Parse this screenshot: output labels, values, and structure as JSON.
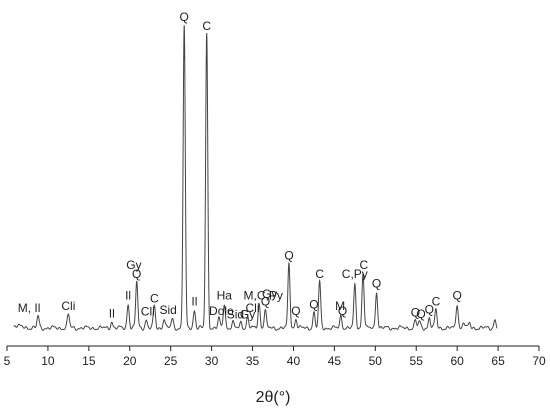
{
  "chart_data": {
    "type": "line",
    "title": "",
    "xlabel": "2θ(°)",
    "ylabel": "",
    "xlim": [
      5,
      70
    ],
    "xticks": [
      5,
      10,
      15,
      20,
      25,
      30,
      35,
      40,
      45,
      50,
      55,
      60,
      65,
      70
    ],
    "grid": false,
    "legend": "none",
    "line_color": "#444444",
    "series": [
      {
        "peaks": [
          {
            "x": 8.8,
            "h": 0.038
          },
          {
            "x": 12.5,
            "h": 0.045
          },
          {
            "x": 17.8,
            "h": 0.022
          },
          {
            "x": 19.8,
            "h": 0.08
          },
          {
            "x": 20.85,
            "h": 0.15
          },
          {
            "x": 22.0,
            "h": 0.028
          },
          {
            "x": 23.0,
            "h": 0.07
          },
          {
            "x": 24.2,
            "h": 0.032
          },
          {
            "x": 25.2,
            "h": 0.03
          },
          {
            "x": 26.65,
            "h": 0.99
          },
          {
            "x": 27.9,
            "h": 0.06
          },
          {
            "x": 29.4,
            "h": 0.96
          },
          {
            "x": 30.9,
            "h": 0.03
          },
          {
            "x": 31.55,
            "h": 0.08
          },
          {
            "x": 32.6,
            "h": 0.018
          },
          {
            "x": 33.6,
            "h": 0.02
          },
          {
            "x": 34.4,
            "h": 0.035
          },
          {
            "x": 35.8,
            "h": 0.08
          },
          {
            "x": 36.55,
            "h": 0.06
          },
          {
            "x": 39.45,
            "h": 0.21
          },
          {
            "x": 40.3,
            "h": 0.03
          },
          {
            "x": 42.5,
            "h": 0.05
          },
          {
            "x": 43.2,
            "h": 0.15
          },
          {
            "x": 45.8,
            "h": 0.04
          },
          {
            "x": 47.5,
            "h": 0.14
          },
          {
            "x": 48.5,
            "h": 0.18
          },
          {
            "x": 50.15,
            "h": 0.12
          },
          {
            "x": 54.9,
            "h": 0.025
          },
          {
            "x": 55.4,
            "h": 0.02
          },
          {
            "x": 56.6,
            "h": 0.035
          },
          {
            "x": 57.4,
            "h": 0.06
          },
          {
            "x": 60.0,
            "h": 0.08
          },
          {
            "x": 60.8,
            "h": 0.02
          },
          {
            "x": 61.5,
            "h": 0.015
          },
          {
            "x": 64.6,
            "h": 0.028
          }
        ]
      }
    ],
    "annotations": [
      {
        "text": "Q",
        "x": 26.65,
        "h": 0.99
      },
      {
        "text": "C",
        "x": 29.4,
        "h": 0.96
      },
      {
        "text": "Gy",
        "x": 20.5,
        "h": 0.18
      },
      {
        "text": "Q",
        "x": 20.85,
        "h": 0.15
      },
      {
        "text": "M, Il",
        "x": 7.7,
        "h": 0.04
      },
      {
        "text": "Cli",
        "x": 12.5,
        "h": 0.045
      },
      {
        "text": "Il",
        "x": 17.8,
        "h": 0.022
      },
      {
        "text": "Il",
        "x": 19.8,
        "h": 0.08
      },
      {
        "text": "C",
        "x": 23.0,
        "h": 0.07
      },
      {
        "text": "Cli",
        "x": 22.2,
        "h": 0.028
      },
      {
        "text": "Sid",
        "x": 24.7,
        "h": 0.032
      },
      {
        "text": "Il",
        "x": 27.9,
        "h": 0.06
      },
      {
        "text": "Ha",
        "x": 31.55,
        "h": 0.08
      },
      {
        "text": "Dolo",
        "x": 31.2,
        "h": 0.03
      },
      {
        "text": "Sid",
        "x": 32.9,
        "h": 0.018
      },
      {
        "text": "Gy",
        "x": 34.4,
        "h": 0.018
      },
      {
        "text": "Cli",
        "x": 35.0,
        "h": 0.04
      },
      {
        "text": "M,C,Py",
        "x": 36.3,
        "h": 0.08
      },
      {
        "text": "Gy",
        "x": 37.1,
        "h": 0.085
      },
      {
        "text": "Q",
        "x": 36.6,
        "h": 0.06
      },
      {
        "text": "Q",
        "x": 39.45,
        "h": 0.21
      },
      {
        "text": "Q",
        "x": 40.3,
        "h": 0.03
      },
      {
        "text": "Q",
        "x": 42.5,
        "h": 0.05
      },
      {
        "text": "C",
        "x": 43.2,
        "h": 0.15
      },
      {
        "text": "M",
        "x": 45.7,
        "h": 0.045
      },
      {
        "text": "Q",
        "x": 46.0,
        "h": 0.03
      },
      {
        "text": "C,Py",
        "x": 47.5,
        "h": 0.15
      },
      {
        "text": "C",
        "x": 48.6,
        "h": 0.18
      },
      {
        "text": "Q",
        "x": 50.15,
        "h": 0.12
      },
      {
        "text": "Q",
        "x": 54.9,
        "h": 0.025
      },
      {
        "text": "Q",
        "x": 55.6,
        "h": 0.02
      },
      {
        "text": "Q",
        "x": 56.6,
        "h": 0.035
      },
      {
        "text": "C",
        "x": 57.4,
        "h": 0.06
      },
      {
        "text": "Q",
        "x": 60.0,
        "h": 0.08
      }
    ]
  }
}
